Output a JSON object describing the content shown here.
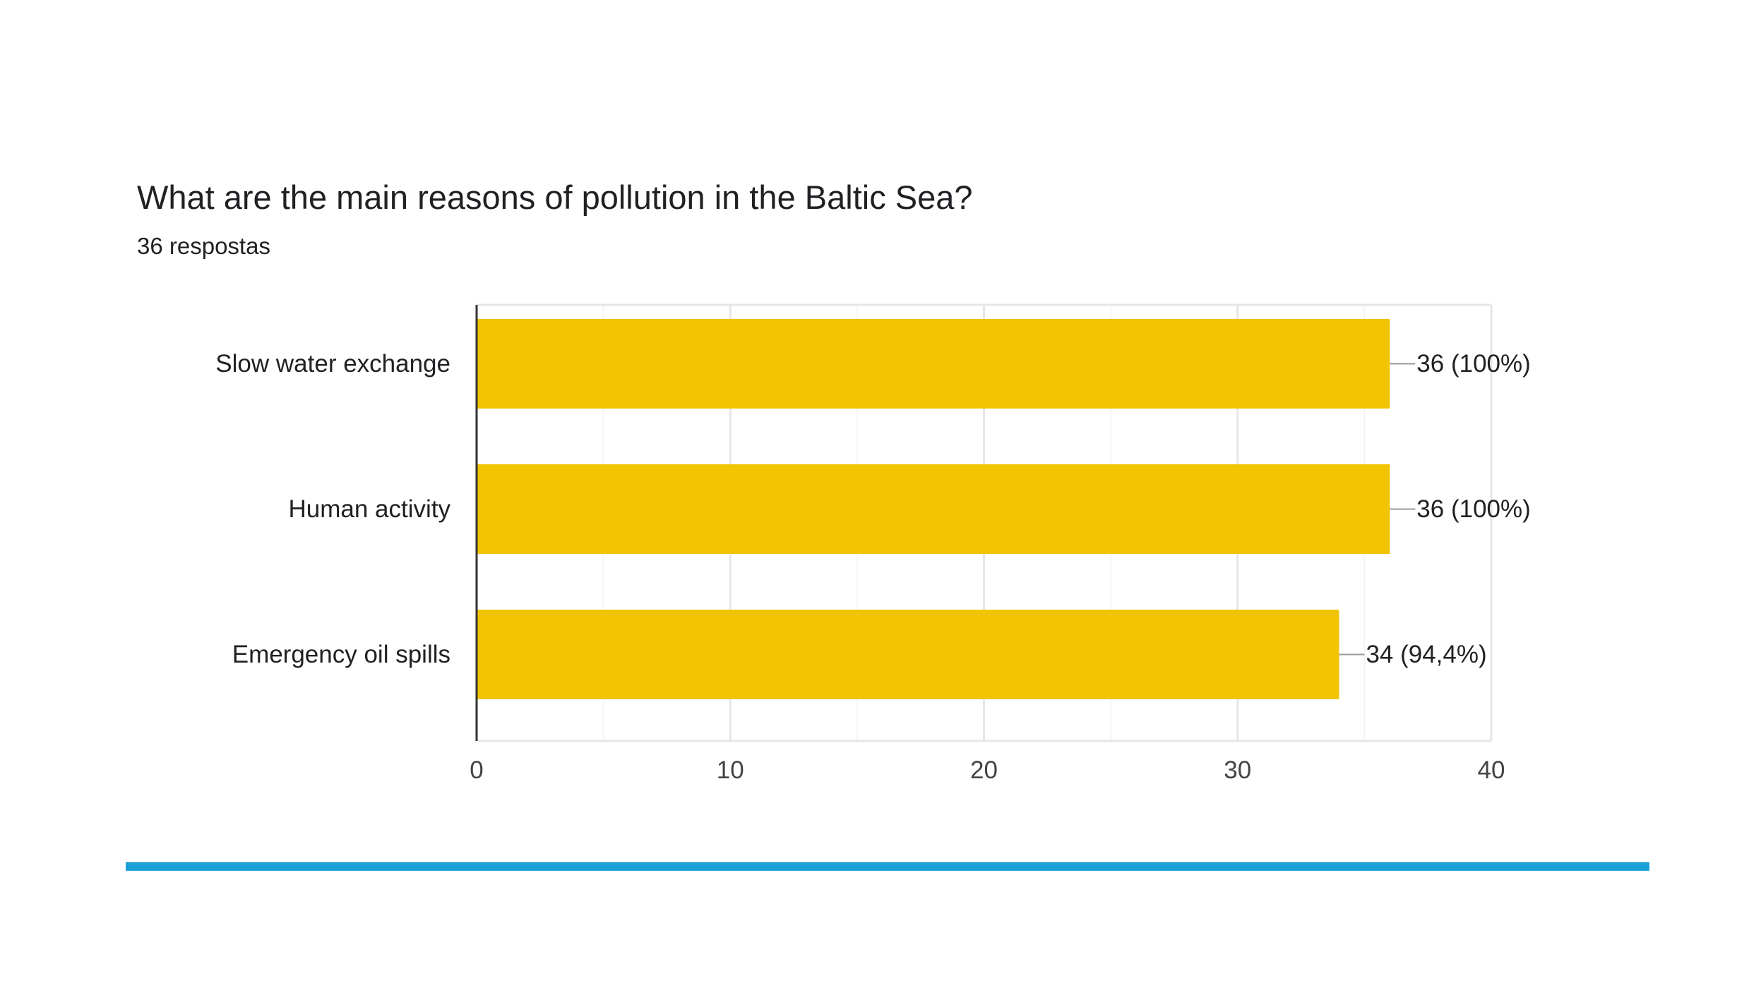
{
  "chart_data": {
    "type": "bar",
    "orientation": "horizontal",
    "title": "What are the main reasons of pollution in the Baltic Sea?",
    "subtitle": "36 respostas",
    "categories": [
      "Slow water exchange",
      "Human activity",
      "Emergency oil spills"
    ],
    "values": [
      36,
      36,
      34
    ],
    "data_labels": [
      "36 (100%)",
      "36 (100%)",
      "34 (94,4%)"
    ],
    "xlim": [
      0,
      40
    ],
    "xticks": [
      0,
      10,
      20,
      30,
      40
    ],
    "xtick_labels": [
      "0",
      "10",
      "20",
      "30",
      "40"
    ],
    "grid": true,
    "legend": "none",
    "colors": {
      "bar": "#f1c300",
      "axis": "#333333",
      "grid_major": "#e6e6e6",
      "grid_minor": "#f4f4f4",
      "leader": "#999999",
      "accent_rule": "#1a9fd9"
    }
  }
}
